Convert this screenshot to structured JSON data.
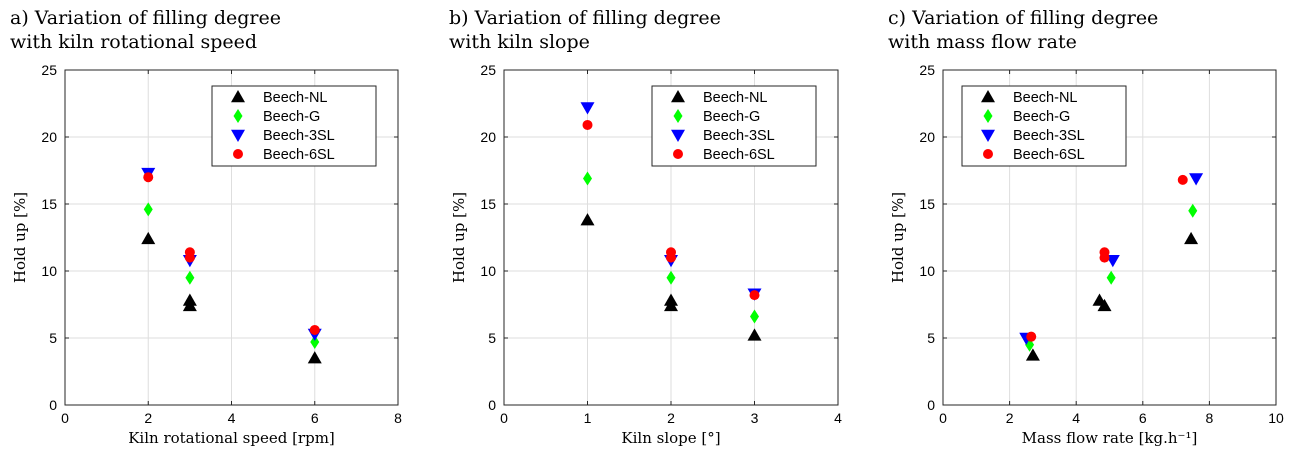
{
  "chart_data": [
    {
      "type": "scatter",
      "title_lines": [
        "a) Variation of filling degree",
        "with kiln rotational speed"
      ],
      "xlabel": "Kiln rotational speed [rpm]",
      "ylabel": "Hold up [%]",
      "xlim": [
        0,
        8
      ],
      "ylim": [
        0,
        25
      ],
      "xticks": [
        "0",
        "2",
        "4",
        "6",
        "8"
      ],
      "yticks": [
        "0",
        "5",
        "10",
        "15",
        "20",
        "25"
      ],
      "grid": true,
      "legend_position": "top-right",
      "series": [
        {
          "name": "Beech-NL",
          "marker": "triangle-up",
          "color": "#000000",
          "x": [
            2,
            3,
            3,
            6
          ],
          "y": [
            12.4,
            7.8,
            7.4,
            3.5
          ]
        },
        {
          "name": "Beech-G",
          "marker": "diamond",
          "color": "#00ff00",
          "x": [
            2,
            3,
            6
          ],
          "y": [
            14.6,
            9.5,
            4.7
          ]
        },
        {
          "name": "Beech-3SL",
          "marker": "triangle-down",
          "color": "#0000ff",
          "x": [
            2,
            3,
            6
          ],
          "y": [
            17.3,
            10.8,
            5.3
          ]
        },
        {
          "name": "Beech-6SL",
          "marker": "circle",
          "color": "#ff0000",
          "x": [
            2,
            3,
            3,
            6
          ],
          "y": [
            17.0,
            11.4,
            11.0,
            5.6
          ]
        }
      ]
    },
    {
      "type": "scatter",
      "title_lines": [
        "b) Variation of filling degree",
        "with kiln slope"
      ],
      "xlabel": "Kiln slope [°]",
      "ylabel": "Hold up [%]",
      "xlim": [
        0,
        4
      ],
      "ylim": [
        0,
        25
      ],
      "xticks": [
        "0",
        "1",
        "2",
        "3",
        "4"
      ],
      "yticks": [
        "0",
        "5",
        "10",
        "15",
        "20",
        "25"
      ],
      "grid": true,
      "legend_position": "top-right",
      "series": [
        {
          "name": "Beech-NL",
          "marker": "triangle-up",
          "color": "#000000",
          "x": [
            1,
            2,
            2,
            3
          ],
          "y": [
            13.8,
            7.8,
            7.4,
            5.2
          ]
        },
        {
          "name": "Beech-G",
          "marker": "diamond",
          "color": "#00ff00",
          "x": [
            1,
            2,
            3
          ],
          "y": [
            16.9,
            9.5,
            6.6
          ]
        },
        {
          "name": "Beech-3SL",
          "marker": "triangle-down",
          "color": "#0000ff",
          "x": [
            1,
            2,
            3
          ],
          "y": [
            22.2,
            10.8,
            8.3
          ]
        },
        {
          "name": "Beech-6SL",
          "marker": "circle",
          "color": "#ff0000",
          "x": [
            1,
            2,
            2,
            3
          ],
          "y": [
            20.9,
            11.4,
            11.0,
            8.2
          ]
        }
      ]
    },
    {
      "type": "scatter",
      "title_lines": [
        "c) Variation of filling degree",
        "with mass flow rate"
      ],
      "xlabel": "Mass flow rate [kg.h⁻¹]",
      "ylabel": "Hold up [%]",
      "xlim": [
        0,
        10
      ],
      "ylim": [
        0,
        25
      ],
      "xticks": [
        "0",
        "2",
        "4",
        "6",
        "8",
        "10"
      ],
      "yticks": [
        "0",
        "5",
        "10",
        "15",
        "20",
        "25"
      ],
      "grid": true,
      "legend_position": "top-left",
      "series": [
        {
          "name": "Beech-NL",
          "marker": "triangle-up",
          "color": "#000000",
          "x": [
            2.7,
            4.7,
            4.85,
            7.45
          ],
          "y": [
            3.7,
            7.8,
            7.4,
            12.4
          ]
        },
        {
          "name": "Beech-G",
          "marker": "diamond",
          "color": "#00ff00",
          "x": [
            2.6,
            5.05,
            7.5
          ],
          "y": [
            4.5,
            9.5,
            14.5
          ]
        },
        {
          "name": "Beech-3SL",
          "marker": "triangle-down",
          "color": "#0000ff",
          "x": [
            2.5,
            5.1,
            7.6
          ],
          "y": [
            5.0,
            10.8,
            16.9
          ]
        },
        {
          "name": "Beech-6SL",
          "marker": "circle",
          "color": "#ff0000",
          "x": [
            2.65,
            4.85,
            4.85,
            7.2
          ],
          "y": [
            5.1,
            11.4,
            11.0,
            16.8
          ]
        }
      ]
    }
  ]
}
